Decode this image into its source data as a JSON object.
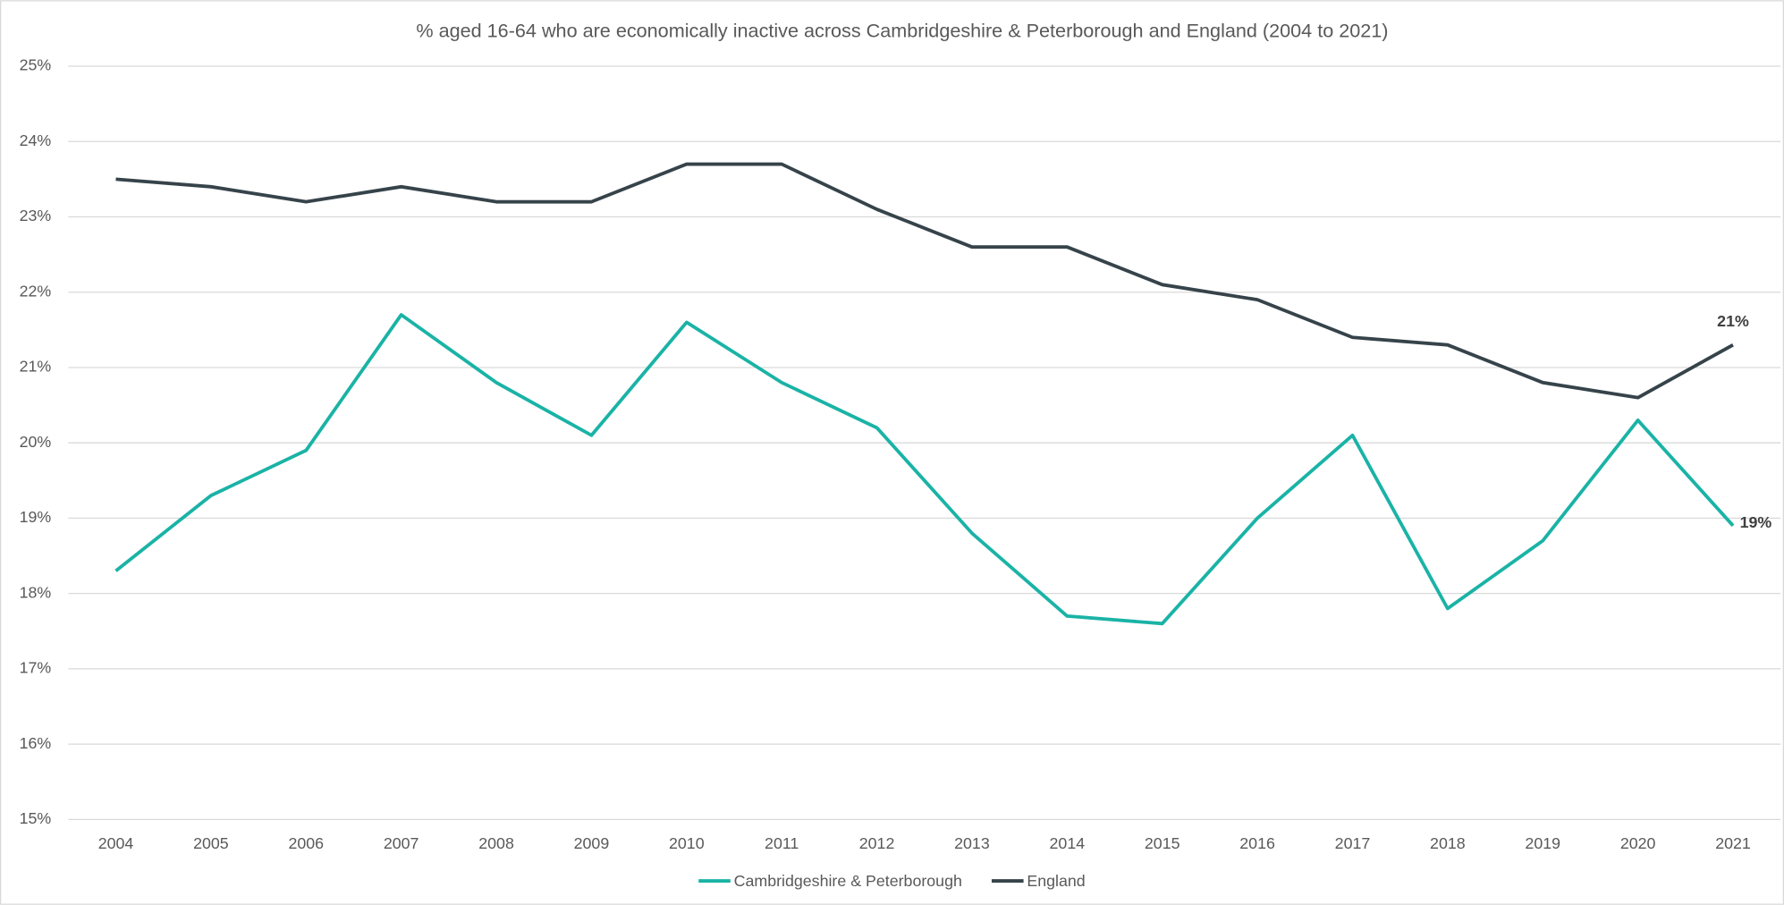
{
  "chart_data": {
    "type": "line",
    "title": "% aged 16-64 who are economically inactive across Cambridgeshire & Peterborough and England (2004 to 2021)",
    "categories": [
      "2004",
      "2005",
      "2006",
      "2007",
      "2008",
      "2009",
      "2010",
      "2011",
      "2012",
      "2013",
      "2014",
      "2015",
      "2016",
      "2017",
      "2018",
      "2019",
      "2020",
      "2021"
    ],
    "series": [
      {
        "name": "Cambridgeshire & Peterborough",
        "color": "#1ab3a6",
        "values": [
          18.3,
          19.3,
          19.9,
          21.7,
          20.8,
          20.1,
          21.6,
          20.8,
          20.2,
          18.8,
          17.7,
          17.6,
          19.0,
          20.1,
          17.8,
          18.7,
          20.3,
          18.9
        ],
        "value_labels": [
          null,
          null,
          null,
          null,
          null,
          null,
          null,
          null,
          null,
          null,
          null,
          null,
          null,
          null,
          null,
          null,
          null,
          "19%"
        ]
      },
      {
        "name": "England",
        "color": "#36434a",
        "values": [
          23.5,
          23.4,
          23.2,
          23.4,
          23.2,
          23.2,
          23.7,
          23.7,
          23.1,
          22.6,
          22.6,
          22.1,
          21.9,
          21.4,
          21.3,
          20.8,
          20.6,
          21.3
        ],
        "value_labels": [
          null,
          null,
          null,
          null,
          null,
          null,
          null,
          null,
          null,
          null,
          null,
          null,
          null,
          null,
          null,
          null,
          null,
          "21%"
        ]
      }
    ],
    "ylim": [
      15,
      25
    ],
    "yticks": [
      {
        "value": 15,
        "label": "15%"
      },
      {
        "value": 16,
        "label": "16%"
      },
      {
        "value": 17,
        "label": "17%"
      },
      {
        "value": 18,
        "label": "18%"
      },
      {
        "value": 19,
        "label": "19%"
      },
      {
        "value": 20,
        "label": "20%"
      },
      {
        "value": 21,
        "label": "21%"
      },
      {
        "value": 22,
        "label": "22%"
      },
      {
        "value": 23,
        "label": "23%"
      },
      {
        "value": 24,
        "label": "24%"
      },
      {
        "value": 25,
        "label": "25%"
      }
    ],
    "grid": true,
    "legend": "bottom"
  }
}
